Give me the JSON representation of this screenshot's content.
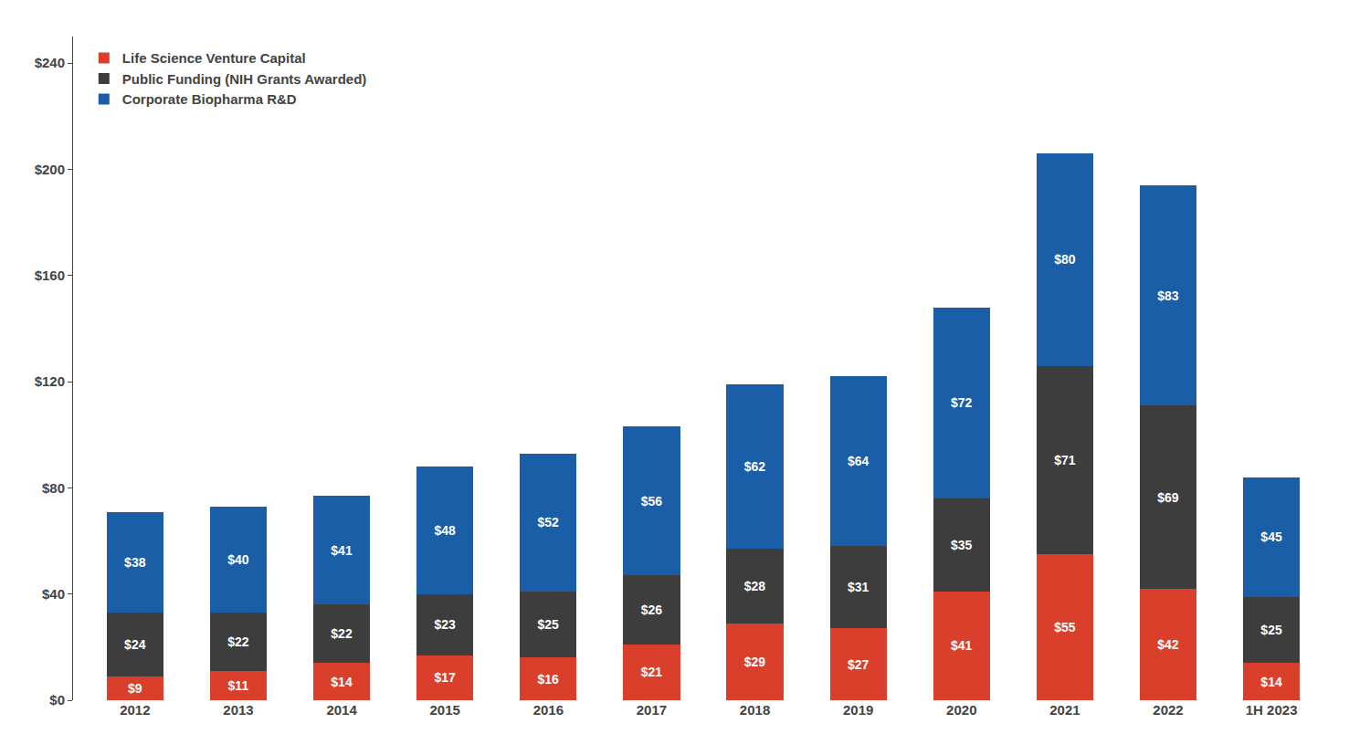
{
  "chart_data": {
    "type": "bar",
    "stacked": true,
    "categories": [
      "2012",
      "2013",
      "2014",
      "2015",
      "2016",
      "2017",
      "2018",
      "2019",
      "2020",
      "2021",
      "2022",
      "1H 2023"
    ],
    "series": [
      {
        "name": "Life Science Venture Capital",
        "color": "#d93f2a",
        "values": [
          9,
          11,
          14,
          17,
          16,
          21,
          29,
          27,
          41,
          55,
          42,
          14
        ],
        "value_labels": [
          "$9",
          "$11",
          "$14",
          "$17",
          "$16",
          "$21",
          "$29",
          "$27",
          "$41",
          "$55",
          "$42",
          "$14"
        ]
      },
      {
        "name": "Public Funding (NIH Grants Awarded)",
        "color": "#3d3d3d",
        "values": [
          24,
          22,
          22,
          23,
          25,
          26,
          28,
          31,
          35,
          71,
          69,
          25
        ],
        "value_labels": [
          "$24",
          "$22",
          "$22",
          "$23",
          "$25",
          "$26",
          "$28",
          "$31",
          "$35",
          "$71",
          "$69",
          "$25"
        ]
      },
      {
        "name": "Corporate Biopharma R&D",
        "color": "#1a5ea8",
        "values": [
          38,
          40,
          41,
          48,
          52,
          56,
          62,
          64,
          72,
          80,
          83,
          45
        ],
        "value_labels": [
          "$38",
          "$40",
          "$41",
          "$48",
          "$52",
          "$56",
          "$62",
          "$64",
          "$72",
          "$80",
          "$83",
          "$45"
        ]
      }
    ],
    "ylim": [
      0,
      250
    ],
    "yticks": [
      {
        "value": 0,
        "label": "$0"
      },
      {
        "value": 40,
        "label": "$40"
      },
      {
        "value": 80,
        "label": "$80"
      },
      {
        "value": 120,
        "label": "$120"
      },
      {
        "value": 160,
        "label": "$160"
      },
      {
        "value": 200,
        "label": "$200"
      },
      {
        "value": 240,
        "label": "$240"
      }
    ],
    "grid": false,
    "legend": "upper left",
    "data_labels": true
  }
}
